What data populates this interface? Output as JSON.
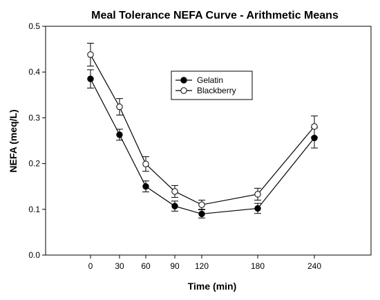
{
  "chart_data": {
    "type": "line",
    "title": "Meal Tolerance NEFA Curve - Arithmetic Means",
    "xlabel": "Time (min)",
    "ylabel": "NEFA (meq/L)",
    "categories": [
      "0",
      "30",
      "60",
      "90",
      "120",
      "180",
      "240"
    ],
    "ylim": [
      0.0,
      0.5
    ],
    "yticks": [
      "0.0",
      "0.1",
      "0.2",
      "0.3",
      "0.4",
      "0.5"
    ],
    "grid": false,
    "legend_position": "upper-center",
    "series": [
      {
        "name": "Gelatin",
        "marker": "filled-circle",
        "values": [
          0.385,
          0.263,
          0.15,
          0.107,
          0.09,
          0.102,
          0.256
        ],
        "errors": [
          0.02,
          0.012,
          0.012,
          0.011,
          0.009,
          0.011,
          0.022
        ]
      },
      {
        "name": "Blackberry",
        "marker": "open-circle",
        "values": [
          0.438,
          0.324,
          0.199,
          0.139,
          0.11,
          0.133,
          0.281
        ],
        "errors": [
          0.025,
          0.018,
          0.016,
          0.013,
          0.01,
          0.013,
          0.023
        ]
      }
    ]
  }
}
